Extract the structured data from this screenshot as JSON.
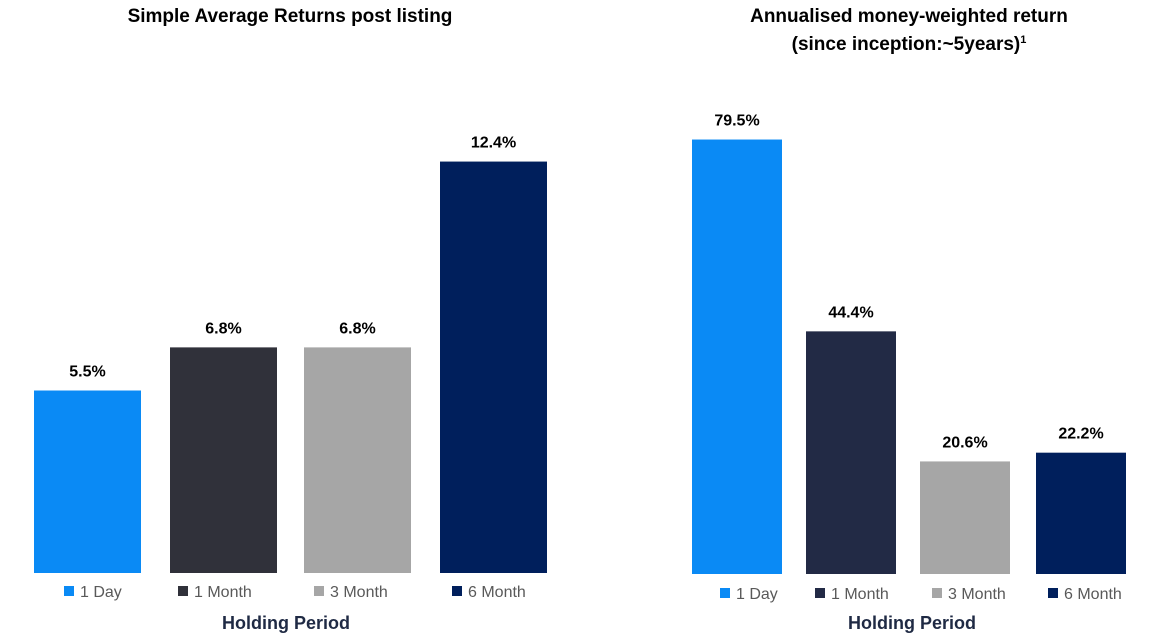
{
  "chart_data": [
    {
      "type": "bar",
      "title": "Simple Average Returns post listing",
      "categories": [
        "1 Day",
        "1 Month",
        "3 Month",
        "6 Month"
      ],
      "values": [
        5.5,
        6.8,
        6.8,
        12.4
      ],
      "data_labels": [
        "5.5%",
        "6.8%",
        "6.8%",
        "12.4%"
      ],
      "colors": [
        "#0a8af5",
        "#30313a",
        "#a6a6a6",
        "#001f5c"
      ],
      "xlabel": "Holding Period",
      "ylabel": "",
      "ylim": [
        0,
        14
      ],
      "legend": "bottom",
      "grid": false
    },
    {
      "type": "bar",
      "title": "Annualised money-weighted return",
      "subtitle": "(since inception:~5years)",
      "subtitle_sup": "1",
      "categories": [
        "1 Day",
        "1 Month",
        "3 Month",
        "6 Month"
      ],
      "values": [
        79.5,
        44.4,
        20.6,
        22.2
      ],
      "data_labels": [
        "79.5%",
        "44.4%",
        "20.6%",
        "22.2%"
      ],
      "colors": [
        "#0a8af5",
        "#222a45",
        "#a6a6a6",
        "#001f5c"
      ],
      "xlabel": "Holding Period",
      "ylabel": "",
      "ylim": [
        0,
        90
      ],
      "legend": "bottom",
      "grid": false
    }
  ]
}
